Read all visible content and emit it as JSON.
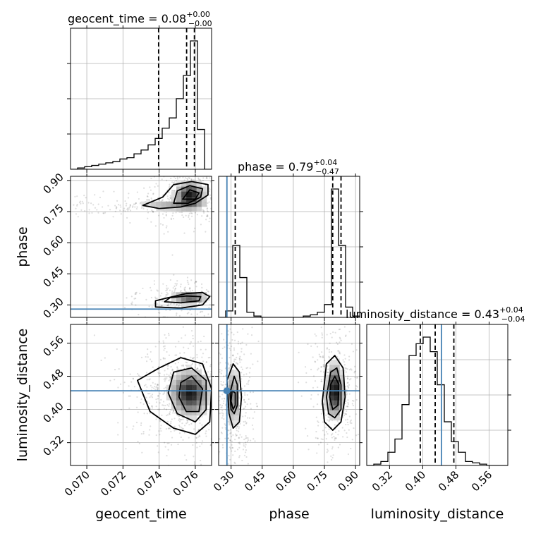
{
  "chart_data": {
    "type": "corner",
    "parameters": [
      "geocent_time",
      "phase",
      "luminosity_distance"
    ],
    "axis_labels": [
      "geocent_time",
      "phase",
      "luminosity_distance"
    ],
    "ranges": {
      "geocent_time": [
        0.0691,
        0.0769
      ],
      "phase": [
        0.24,
        0.92
      ],
      "luminosity_distance": [
        0.265,
        0.605
      ]
    },
    "ticks": {
      "geocent_time": [
        "0.070",
        "0.072",
        "0.074",
        "0.076"
      ],
      "phase": [
        "0.30",
        "0.45",
        "0.60",
        "0.75",
        "0.90"
      ],
      "luminosity_distance": [
        "0.32",
        "0.40",
        "0.48",
        "0.56"
      ]
    },
    "truths": {
      "geocent_time": null,
      "phase": 0.28,
      "luminosity_distance": 0.445
    },
    "titles": [
      {
        "label": "geocent_time = 0.08",
        "sup": "+0.00",
        "sub": "−0.00"
      },
      {
        "label": "phase = 0.79",
        "sup": "+0.04",
        "sub": "−0.47"
      },
      {
        "label": "luminosity_distance = 0.43",
        "sup": "+0.04",
        "sub": "−0.04"
      }
    ],
    "quantiles": {
      "geocent_time": [
        0.07397,
        0.07552,
        0.07595
      ],
      "phase": [
        0.32,
        0.79,
        0.83
      ],
      "luminosity_distance": [
        0.394,
        0.43,
        0.475
      ]
    },
    "histograms": {
      "geocent_time": {
        "bins": [
          0.0691,
          0.06949,
          0.06988,
          0.07027,
          0.07066,
          0.07105,
          0.07144,
          0.07183,
          0.07222,
          0.07261,
          0.073,
          0.07339,
          0.07378,
          0.07417,
          0.07456,
          0.07495,
          0.07534,
          0.07573,
          0.07612,
          0.07651,
          0.0769
        ],
        "counts": [
          0,
          1,
          2,
          3,
          4,
          5,
          6,
          8,
          9,
          12,
          15,
          19,
          24,
          32,
          40,
          55,
          73,
          100,
          31,
          0
        ]
      },
      "phase": {
        "bins": [
          0.24,
          0.274,
          0.308,
          0.342,
          0.376,
          0.41,
          0.444,
          0.478,
          0.512,
          0.546,
          0.58,
          0.614,
          0.648,
          0.682,
          0.716,
          0.75,
          0.784,
          0.818,
          0.852,
          0.886,
          0.92
        ],
        "counts": [
          0,
          5,
          56,
          31,
          4,
          1,
          0,
          0,
          0,
          0,
          0,
          0,
          1,
          2,
          4,
          10,
          100,
          56,
          8,
          1
        ]
      },
      "luminosity_distance": {
        "bins": [
          0.265,
          0.282,
          0.299,
          0.316,
          0.333,
          0.35,
          0.367,
          0.384,
          0.401,
          0.418,
          0.435,
          0.452,
          0.469,
          0.486,
          0.503,
          0.52,
          0.537,
          0.554,
          0.571,
          0.588,
          0.605
        ],
        "counts": [
          0,
          1,
          3,
          10,
          20,
          46,
          83,
          92,
          97,
          86,
          61,
          33,
          18,
          10,
          3,
          2,
          1,
          0,
          0,
          0
        ]
      }
    },
    "density_2d": {
      "phase_vs_geocent_time": {
        "blobs": [
          {
            "x": 0.0757,
            "y": 0.83,
            "sx": 0.00045,
            "sy": 0.035,
            "w": 0.7
          },
          {
            "x": 0.0748,
            "y": 0.78,
            "sx": 0.0012,
            "sy": 0.015,
            "w": 0.25
          },
          {
            "x": 0.0757,
            "y": 0.335,
            "sx": 0.00055,
            "sy": 0.02,
            "w": 0.5
          }
        ],
        "contours": [
          [
            [
              0.0731,
              0.78
            ],
            [
              0.074,
              0.765
            ],
            [
              0.0752,
              0.772
            ],
            [
              0.076,
              0.79
            ],
            [
              0.0767,
              0.83
            ],
            [
              0.0767,
              0.88
            ],
            [
              0.0758,
              0.895
            ],
            [
              0.0748,
              0.88
            ],
            [
              0.0742,
              0.82
            ],
            [
              0.0731,
              0.78
            ]
          ],
          [
            [
              0.0748,
              0.79
            ],
            [
              0.0756,
              0.79
            ],
            [
              0.0763,
              0.82
            ],
            [
              0.0764,
              0.86
            ],
            [
              0.0757,
              0.875
            ],
            [
              0.075,
              0.85
            ],
            [
              0.0748,
              0.79
            ]
          ],
          [
            [
              0.0753,
              0.81
            ],
            [
              0.076,
              0.81
            ],
            [
              0.0762,
              0.84
            ],
            [
              0.0757,
              0.855
            ],
            [
              0.0753,
              0.81
            ]
          ],
          [
            [
              0.0738,
              0.29
            ],
            [
              0.0752,
              0.285
            ],
            [
              0.0764,
              0.3
            ],
            [
              0.0768,
              0.34
            ],
            [
              0.0764,
              0.36
            ],
            [
              0.0755,
              0.355
            ],
            [
              0.0745,
              0.335
            ],
            [
              0.0738,
              0.32
            ],
            [
              0.0738,
              0.29
            ]
          ],
          [
            [
              0.0743,
              0.315
            ],
            [
              0.0752,
              0.31
            ],
            [
              0.0762,
              0.32
            ],
            [
              0.0763,
              0.34
            ],
            [
              0.0755,
              0.343
            ],
            [
              0.0746,
              0.335
            ],
            [
              0.0743,
              0.315
            ]
          ]
        ]
      },
      "luminosity_distance_vs_geocent_time": {
        "blobs": [
          {
            "x": 0.0757,
            "y": 0.44,
            "sx": 0.0006,
            "sy": 0.03,
            "w": 1.0
          }
        ],
        "contours": [
          [
            [
              0.0728,
              0.47
            ],
            [
              0.0735,
              0.395
            ],
            [
              0.0748,
              0.355
            ],
            [
              0.076,
              0.34
            ],
            [
              0.0768,
              0.37
            ],
            [
              0.0769,
              0.45
            ],
            [
              0.0764,
              0.51
            ],
            [
              0.0752,
              0.525
            ],
            [
              0.074,
              0.5
            ],
            [
              0.0728,
              0.47
            ]
          ],
          [
            [
              0.0745,
              0.44
            ],
            [
              0.075,
              0.39
            ],
            [
              0.076,
              0.37
            ],
            [
              0.0766,
              0.4
            ],
            [
              0.0766,
              0.47
            ],
            [
              0.0758,
              0.5
            ],
            [
              0.0748,
              0.49
            ],
            [
              0.0745,
              0.44
            ]
          ],
          [
            [
              0.0751,
              0.43
            ],
            [
              0.0755,
              0.395
            ],
            [
              0.0762,
              0.395
            ],
            [
              0.0764,
              0.45
            ],
            [
              0.0758,
              0.48
            ],
            [
              0.0752,
              0.465
            ],
            [
              0.0751,
              0.43
            ]
          ]
        ]
      },
      "luminosity_distance_vs_phase": {
        "blobs": [
          {
            "x": 0.31,
            "y": 0.43,
            "sx": 0.018,
            "sy": 0.04,
            "w": 0.45
          },
          {
            "x": 0.8,
            "y": 0.445,
            "sx": 0.022,
            "sy": 0.035,
            "w": 0.9
          }
        ],
        "contours": [
          [
            [
              0.28,
              0.47
            ],
            [
              0.29,
              0.39
            ],
            [
              0.31,
              0.355
            ],
            [
              0.34,
              0.37
            ],
            [
              0.35,
              0.43
            ],
            [
              0.34,
              0.49
            ],
            [
              0.31,
              0.51
            ],
            [
              0.28,
              0.47
            ]
          ],
          [
            [
              0.295,
              0.44
            ],
            [
              0.3,
              0.4
            ],
            [
              0.315,
              0.39
            ],
            [
              0.33,
              0.41
            ],
            [
              0.33,
              0.46
            ],
            [
              0.315,
              0.48
            ],
            [
              0.295,
              0.44
            ]
          ],
          [
            [
              0.3,
              0.42
            ],
            [
              0.31,
              0.4
            ],
            [
              0.32,
              0.41
            ],
            [
              0.32,
              0.44
            ],
            [
              0.305,
              0.445
            ],
            [
              0.3,
              0.42
            ]
          ],
          [
            [
              0.74,
              0.42
            ],
            [
              0.75,
              0.37
            ],
            [
              0.79,
              0.35
            ],
            [
              0.83,
              0.37
            ],
            [
              0.85,
              0.43
            ],
            [
              0.84,
              0.5
            ],
            [
              0.8,
              0.53
            ],
            [
              0.76,
              0.51
            ],
            [
              0.74,
              0.42
            ]
          ],
          [
            [
              0.76,
              0.43
            ],
            [
              0.77,
              0.39
            ],
            [
              0.8,
              0.38
            ],
            [
              0.83,
              0.4
            ],
            [
              0.83,
              0.46
            ],
            [
              0.81,
              0.5
            ],
            [
              0.78,
              0.49
            ],
            [
              0.76,
              0.43
            ]
          ],
          [
            [
              0.775,
              0.43
            ],
            [
              0.79,
              0.4
            ],
            [
              0.815,
              0.41
            ],
            [
              0.82,
              0.46
            ],
            [
              0.8,
              0.48
            ],
            [
              0.78,
              0.46
            ],
            [
              0.775,
              0.43
            ]
          ]
        ]
      }
    }
  }
}
